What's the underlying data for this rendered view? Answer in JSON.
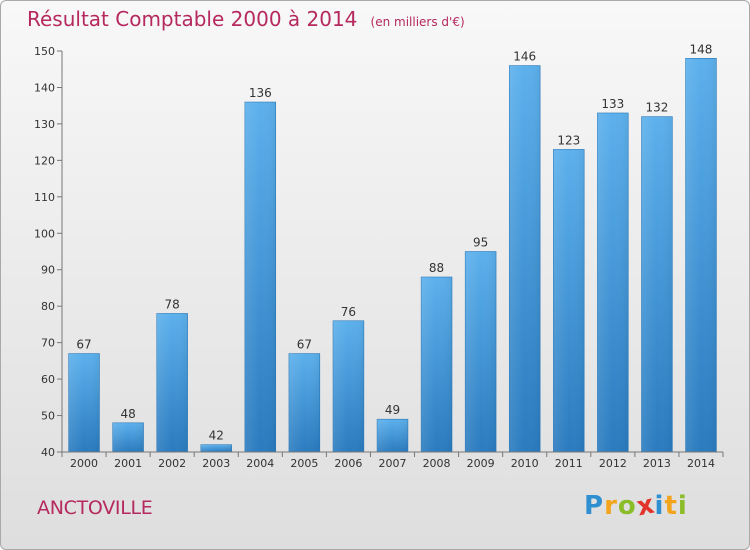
{
  "chart_data": {
    "type": "bar",
    "title": "Résultat Comptable 2000 à 2014",
    "subtitle": "(en milliers d'€)",
    "categories": [
      "2000",
      "2001",
      "2002",
      "2003",
      "2004",
      "2005",
      "2006",
      "2007",
      "2008",
      "2009",
      "2010",
      "2011",
      "2012",
      "2013",
      "2014"
    ],
    "values": [
      67,
      48,
      78,
      42,
      136,
      67,
      76,
      49,
      88,
      95,
      146,
      123,
      133,
      132,
      148
    ],
    "ylim": [
      40,
      150
    ],
    "yticks": [
      40,
      50,
      60,
      70,
      80,
      90,
      100,
      110,
      120,
      130,
      140,
      150
    ],
    "xlabel": "",
    "ylabel": "",
    "grid": false,
    "legend": "none",
    "bar_color": "#3d95d8"
  },
  "location": "ANCTOVILLE",
  "brand": {
    "name": "Proxiti",
    "letters": [
      {
        "ch": "P",
        "color": "#2f8fd0"
      },
      {
        "ch": "r",
        "color": "#f2a51c"
      },
      {
        "ch": "o",
        "color": "#8bbd2a"
      },
      {
        "ch": "x",
        "color": "#e2332c"
      },
      {
        "ch": "i",
        "color": "#2f8fd0"
      },
      {
        "ch": "t",
        "color": "#f2a51c"
      },
      {
        "ch": "i",
        "color": "#8bbd2a"
      }
    ]
  }
}
